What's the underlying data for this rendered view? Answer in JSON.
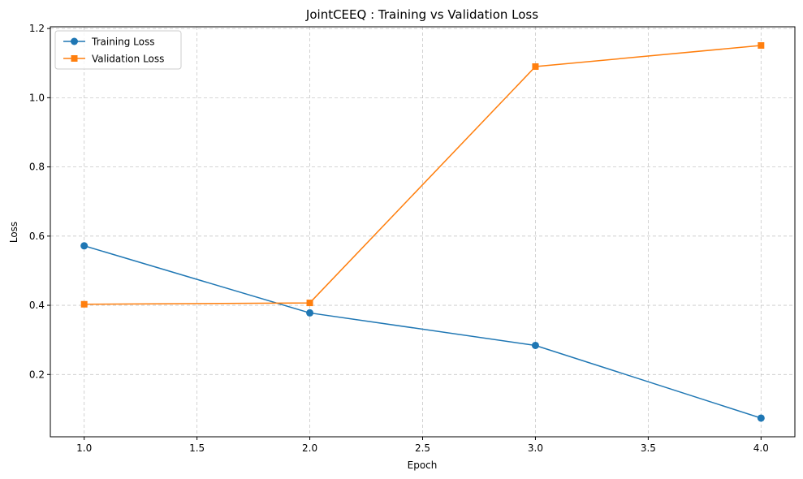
{
  "chart_data": {
    "type": "line",
    "title": "JointCEEQ : Training vs Validation Loss",
    "xlabel": "Epoch",
    "ylabel": "Loss",
    "x": [
      1.0,
      2.0,
      3.0,
      4.0
    ],
    "xlim": [
      0.85,
      4.15
    ],
    "ylim": [
      0.02,
      1.205
    ],
    "xticks": [
      1.0,
      1.5,
      2.0,
      2.5,
      3.0,
      3.5,
      4.0
    ],
    "xtick_labels": [
      "1.0",
      "1.5",
      "2.0",
      "2.5",
      "3.0",
      "3.5",
      "4.0"
    ],
    "yticks": [
      0.2,
      0.4,
      0.6,
      0.8,
      1.0,
      1.2
    ],
    "ytick_labels": [
      "0.2",
      "0.4",
      "0.6",
      "0.8",
      "1.0",
      "1.2"
    ],
    "grid": true,
    "legend_position": "top-left",
    "series": [
      {
        "name": "Training Loss",
        "values": [
          0.572,
          0.378,
          0.284,
          0.074
        ],
        "color": "#1f77b4",
        "marker": "circle"
      },
      {
        "name": "Validation Loss",
        "values": [
          0.403,
          0.407,
          1.09,
          1.151
        ],
        "color": "#ff7f0e",
        "marker": "square"
      }
    ]
  }
}
